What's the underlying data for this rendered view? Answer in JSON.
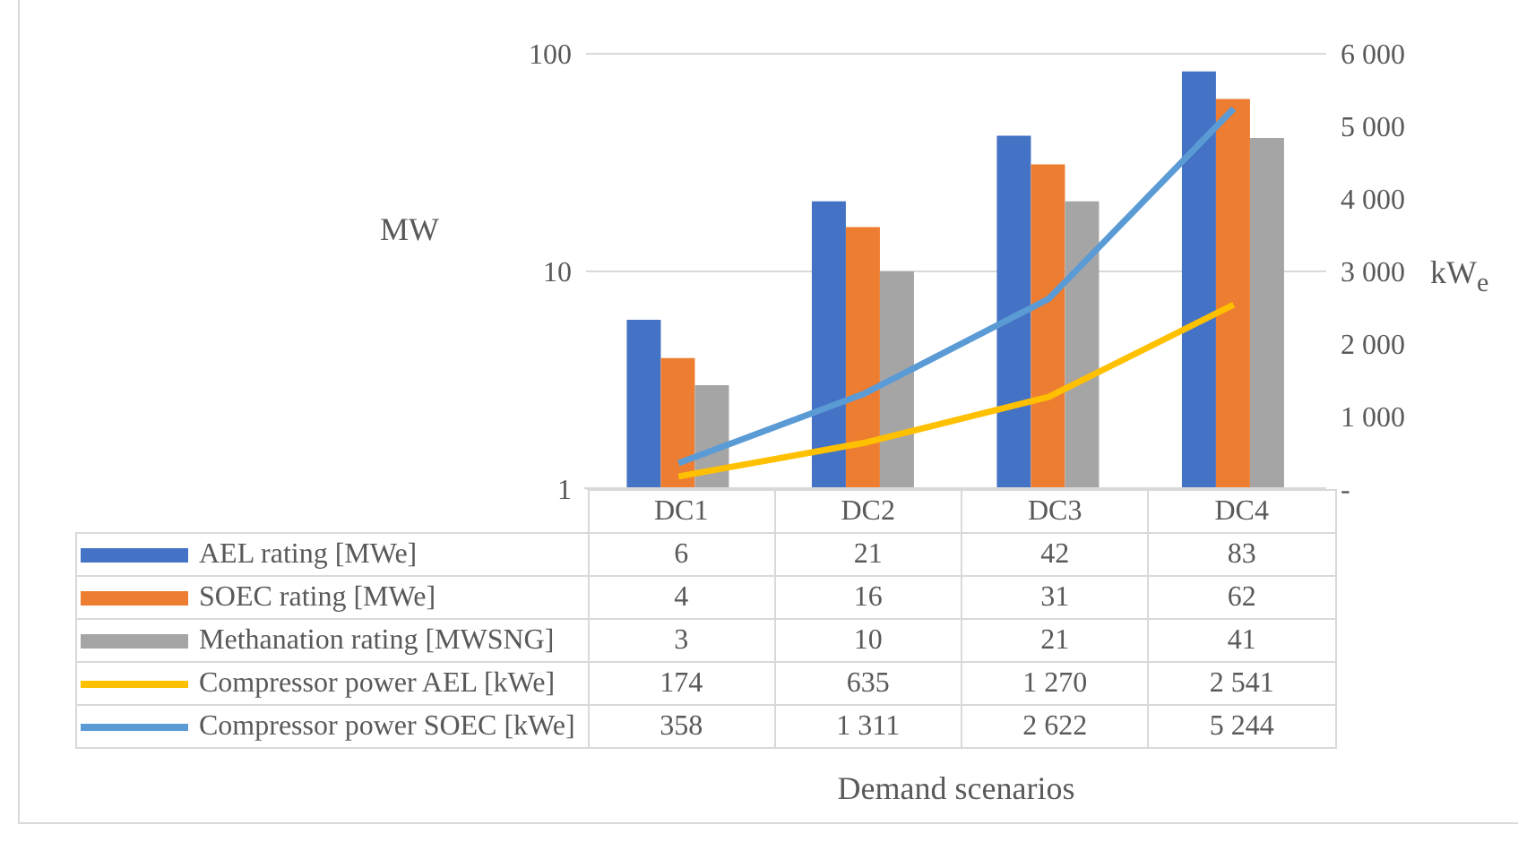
{
  "chart_data": {
    "type": "bar",
    "categories": [
      "DC1",
      "DC2",
      "DC3",
      "DC4"
    ],
    "series": [
      {
        "name": "AEL rating [MWe]",
        "color": "#4472c4",
        "values": [
          6,
          21,
          42,
          83
        ]
      },
      {
        "name": "SOEC rating [MWe]",
        "color": "#ed7d31",
        "values": [
          4,
          16,
          31,
          62
        ]
      },
      {
        "name": "Methanation rating [MWSNG]",
        "color": "#a5a5a5",
        "values": [
          3,
          10,
          21,
          41
        ]
      },
      {
        "name": "Compressor power AEL [kWe]",
        "color": "#ffc000",
        "type": "line",
        "axis": "y2",
        "values": [
          174,
          635,
          1270,
          2541
        ]
      },
      {
        "name": "Compressor power SOEC [kWe]",
        "color": "#5b9bd5",
        "type": "line",
        "axis": "y2",
        "values": [
          358,
          1311,
          2622,
          5244
        ]
      }
    ],
    "log": "y",
    "ylim": [
      1,
      100
    ],
    "yticks": [
      1,
      10,
      100
    ],
    "y2lim": [
      0,
      6000
    ],
    "y2ticks": [
      {
        "value": 0,
        "label": "-"
      },
      {
        "value": 1000,
        "label": "1 000"
      },
      {
        "value": 2000,
        "label": "2 000"
      },
      {
        "value": 3000,
        "label": "3 000"
      },
      {
        "value": 4000,
        "label": "4 000"
      },
      {
        "value": 5000,
        "label": "5 000"
      },
      {
        "value": 6000,
        "label": "6 000"
      }
    ],
    "ylabel": "MW",
    "y2label": "kW$_{e}$",
    "annotations": [
      "Demand scenarios"
    ],
    "grid": "y",
    "legend": "bottom",
    "data_labels": true,
    "marker": "none",
    "line_style": "solid"
  }
}
